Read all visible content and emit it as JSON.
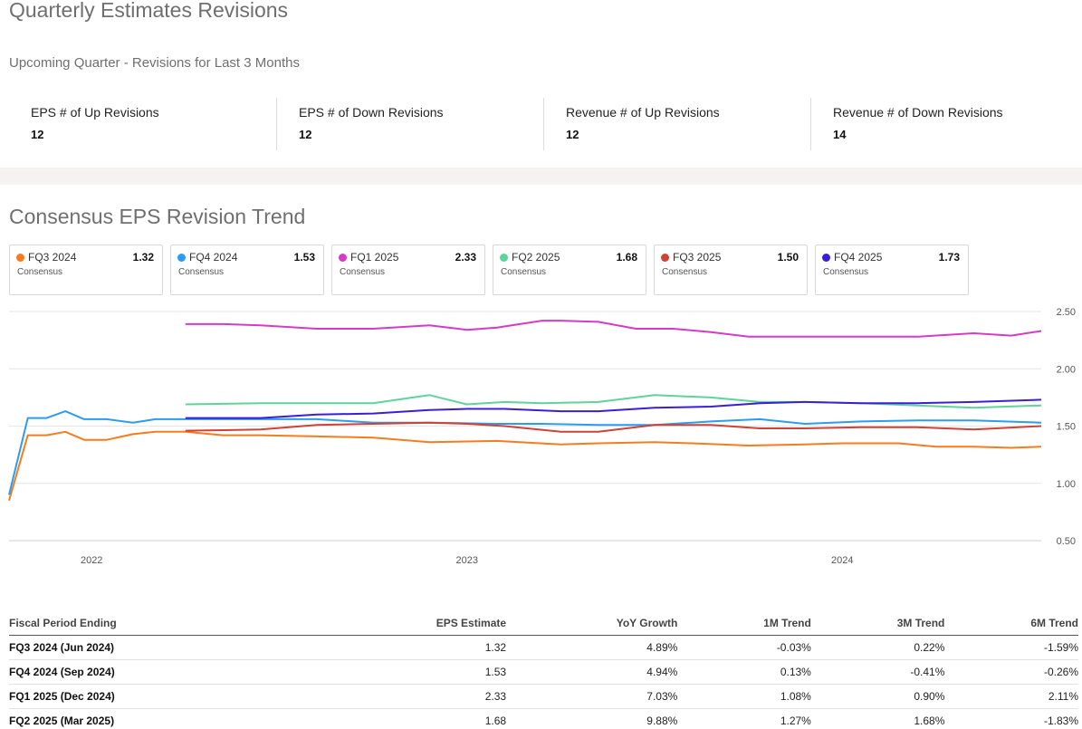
{
  "title": "Quarterly Estimates Revisions",
  "subtitle": "Upcoming Quarter - Revisions for Last 3 Months",
  "stats": [
    {
      "label": "EPS # of Up Revisions",
      "value": "12"
    },
    {
      "label": "EPS # of Down Revisions",
      "value": "12"
    },
    {
      "label": "Revenue # of Up Revisions",
      "value": "12"
    },
    {
      "label": "Revenue # of Down Revisions",
      "value": "14"
    }
  ],
  "trend_title": "Consensus EPS Revision Trend",
  "legend_cards": [
    {
      "name": "FQ3 2024",
      "value": "1.32",
      "sublabel": "Consensus",
      "color": "#f57c1f"
    },
    {
      "name": "FQ4 2024",
      "value": "1.53",
      "sublabel": "Consensus",
      "color": "#2d9cf0"
    },
    {
      "name": "FQ1 2025",
      "value": "2.33",
      "sublabel": "Consensus",
      "color": "#d63bc8"
    },
    {
      "name": "FQ2 2025",
      "value": "1.68",
      "sublabel": "Consensus",
      "color": "#5fd49a"
    },
    {
      "name": "FQ3 2025",
      "value": "1.50",
      "sublabel": "Consensus",
      "color": "#cf4236"
    },
    {
      "name": "FQ4 2025",
      "value": "1.73",
      "sublabel": "Consensus",
      "color": "#3b1fd6"
    }
  ],
  "chart_data": {
    "type": "line",
    "title": "",
    "xlabel": "",
    "ylabel": "",
    "x_range": [
      2021.78,
      2024.53
    ],
    "ylim": [
      0.5,
      2.5
    ],
    "y_ticks": [
      "0.50",
      "1.00",
      "1.50",
      "2.00",
      "2.50"
    ],
    "y_tick_values": [
      0.5,
      1.0,
      1.5,
      2.0,
      2.5
    ],
    "x_ticks": [
      {
        "label": "2022",
        "value": 2022.0
      },
      {
        "label": "2023",
        "value": 2023.0
      },
      {
        "label": "2024",
        "value": 2024.0
      }
    ],
    "grid": true,
    "series": [
      {
        "name": "FQ3 2024",
        "color": "#f57c1f",
        "x": [
          2021.78,
          2021.83,
          2021.88,
          2021.93,
          2021.98,
          2022.04,
          2022.11,
          2022.17,
          2022.25,
          2022.35,
          2022.45,
          2022.6,
          2022.75,
          2022.9,
          2023.08,
          2023.25,
          2023.35,
          2023.5,
          2023.6,
          2023.75,
          2023.9,
          2024.0,
          2024.15,
          2024.25,
          2024.35,
          2024.45,
          2024.53
        ],
        "y": [
          0.85,
          1.42,
          1.42,
          1.45,
          1.38,
          1.38,
          1.43,
          1.45,
          1.45,
          1.42,
          1.42,
          1.41,
          1.4,
          1.36,
          1.37,
          1.34,
          1.35,
          1.36,
          1.35,
          1.33,
          1.34,
          1.35,
          1.35,
          1.32,
          1.32,
          1.31,
          1.32
        ]
      },
      {
        "name": "FQ4 2024",
        "color": "#2d9cf0",
        "x": [
          2021.78,
          2021.83,
          2021.88,
          2021.93,
          2021.98,
          2022.04,
          2022.11,
          2022.17,
          2022.35,
          2022.6,
          2022.75,
          2022.9,
          2023.08,
          2023.2,
          2023.35,
          2023.5,
          2023.65,
          2023.78,
          2023.9,
          2024.05,
          2024.2,
          2024.35,
          2024.53
        ],
        "y": [
          0.9,
          1.57,
          1.57,
          1.63,
          1.56,
          1.56,
          1.53,
          1.56,
          1.56,
          1.56,
          1.53,
          1.53,
          1.52,
          1.52,
          1.51,
          1.51,
          1.54,
          1.56,
          1.52,
          1.54,
          1.55,
          1.55,
          1.53
        ]
      },
      {
        "name": "FQ1 2025",
        "color": "#d63bc8",
        "x": [
          2022.25,
          2022.35,
          2022.45,
          2022.6,
          2022.75,
          2022.9,
          2023.0,
          2023.08,
          2023.2,
          2023.25,
          2023.35,
          2023.45,
          2023.55,
          2023.65,
          2023.75,
          2023.9,
          2024.05,
          2024.2,
          2024.35,
          2024.45,
          2024.53
        ],
        "y": [
          2.39,
          2.39,
          2.38,
          2.35,
          2.35,
          2.38,
          2.34,
          2.36,
          2.42,
          2.42,
          2.41,
          2.35,
          2.35,
          2.32,
          2.28,
          2.28,
          2.28,
          2.28,
          2.31,
          2.29,
          2.33
        ]
      },
      {
        "name": "FQ2 2025",
        "color": "#5fd49a",
        "x": [
          2022.25,
          2022.45,
          2022.6,
          2022.75,
          2022.9,
          2023.0,
          2023.1,
          2023.2,
          2023.35,
          2023.5,
          2023.65,
          2023.78,
          2023.9,
          2024.05,
          2024.2,
          2024.35,
          2024.53
        ],
        "y": [
          1.69,
          1.7,
          1.7,
          1.7,
          1.77,
          1.69,
          1.71,
          1.7,
          1.71,
          1.77,
          1.75,
          1.71,
          1.71,
          1.7,
          1.68,
          1.66,
          1.68
        ]
      },
      {
        "name": "FQ3 2025",
        "color": "#cf4236",
        "x": [
          2022.25,
          2022.45,
          2022.6,
          2022.75,
          2022.9,
          2023.0,
          2023.1,
          2023.25,
          2023.35,
          2023.5,
          2023.65,
          2023.78,
          2023.9,
          2024.05,
          2024.2,
          2024.35,
          2024.53
        ],
        "y": [
          1.46,
          1.47,
          1.51,
          1.52,
          1.53,
          1.52,
          1.5,
          1.45,
          1.45,
          1.51,
          1.51,
          1.48,
          1.48,
          1.49,
          1.49,
          1.47,
          1.5
        ]
      },
      {
        "name": "FQ4 2025",
        "color": "#3b1fd6",
        "x": [
          2022.25,
          2022.45,
          2022.6,
          2022.75,
          2022.9,
          2023.0,
          2023.1,
          2023.25,
          2023.35,
          2023.5,
          2023.65,
          2023.78,
          2023.9,
          2024.05,
          2024.2,
          2024.35,
          2024.53
        ],
        "y": [
          1.57,
          1.57,
          1.6,
          1.61,
          1.64,
          1.65,
          1.65,
          1.63,
          1.63,
          1.66,
          1.67,
          1.7,
          1.71,
          1.7,
          1.7,
          1.71,
          1.73
        ]
      }
    ]
  },
  "table": {
    "headers": [
      "Fiscal Period Ending",
      "EPS Estimate",
      "YoY Growth",
      "1M Trend",
      "3M Trend",
      "6M Trend"
    ],
    "rows": [
      {
        "period": "FQ3 2024 (Jun 2024)",
        "eps": "1.32",
        "yoy": "4.89%",
        "t1m": "-0.03%",
        "t3m": "0.22%",
        "t6m": "-1.59%"
      },
      {
        "period": "FQ4 2024 (Sep 2024)",
        "eps": "1.53",
        "yoy": "4.94%",
        "t1m": "0.13%",
        "t3m": "-0.41%",
        "t6m": "-0.26%"
      },
      {
        "period": "FQ1 2025 (Dec 2024)",
        "eps": "2.33",
        "yoy": "7.03%",
        "t1m": "1.08%",
        "t3m": "0.90%",
        "t6m": "2.11%"
      },
      {
        "period": "FQ2 2025 (Mar 2025)",
        "eps": "1.68",
        "yoy": "9.88%",
        "t1m": "1.27%",
        "t3m": "1.68%",
        "t6m": "-1.83%"
      }
    ]
  }
}
